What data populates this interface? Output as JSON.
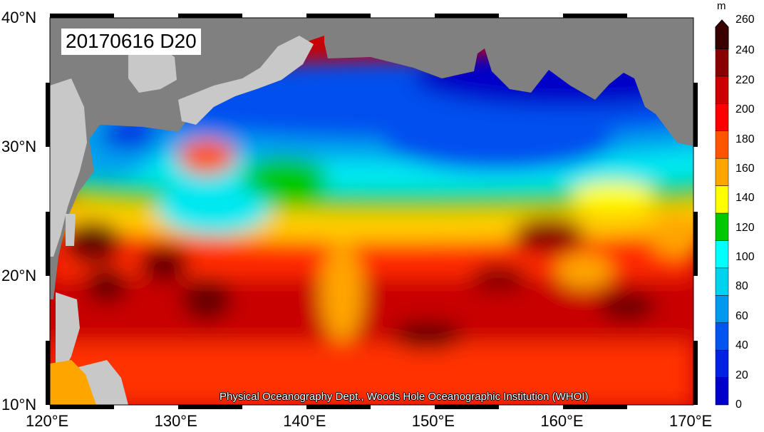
{
  "map": {
    "title": "20170616 D20",
    "credit": "Physical Oceanography Dept., Woods Hole Oceanographic Institution (WHOI)",
    "projection_extent": {
      "lon": [
        120,
        170
      ],
      "lat": [
        10,
        40
      ]
    },
    "x_ticks": [
      {
        "lon": 120,
        "label": "120°E"
      },
      {
        "lon": 130,
        "label": "130°E"
      },
      {
        "lon": 140,
        "label": "140°E"
      },
      {
        "lon": 150,
        "label": "150°E"
      },
      {
        "lon": 160,
        "label": "160°E"
      },
      {
        "lon": 170,
        "label": "170°E"
      }
    ],
    "y_ticks": [
      {
        "lat": 10,
        "label": "10°N"
      },
      {
        "lat": 20,
        "label": "20°N"
      },
      {
        "lat": 30,
        "label": "30°N"
      },
      {
        "lat": 40,
        "label": "40°N"
      }
    ],
    "colors": {
      "land": "#808080",
      "land_light": "#c8c8c8"
    }
  },
  "colorbar": {
    "unit": "m",
    "ticks": [
      "0",
      "20",
      "40",
      "60",
      "80",
      "100",
      "120",
      "140",
      "160",
      "180",
      "200",
      "220",
      "240",
      "260"
    ],
    "colors": [
      "#0000c8",
      "#0022e0",
      "#0055ee",
      "#0099ee",
      "#00d2f0",
      "#00ffff",
      "#00c800",
      "#ffff00",
      "#ffa500",
      "#ff5500",
      "#ff0000",
      "#cc0000",
      "#880000",
      "#3a0000"
    ]
  }
}
